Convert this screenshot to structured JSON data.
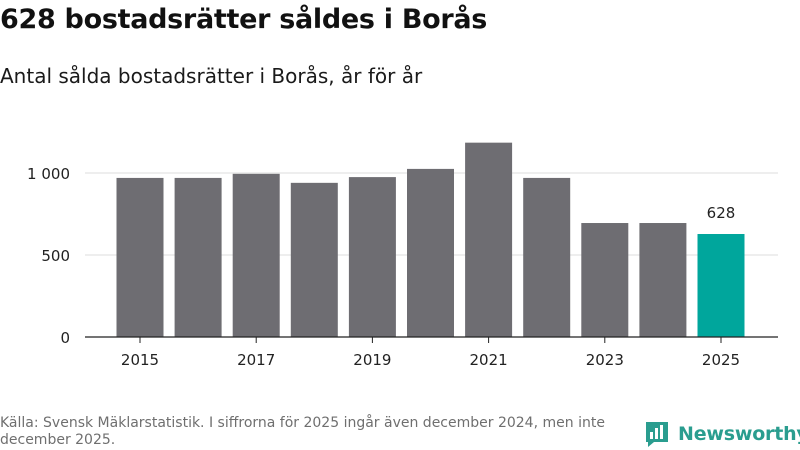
{
  "header": {
    "title": "628 bostadsrätter såldes i Borås",
    "subtitle": "Antal sålda bostadsrätter i Borås, år för år"
  },
  "footer": {
    "source": "Källa: Svensk Mäklarstatistik. I siffrorna för 2025 ingår även december 2024, men inte december 2025."
  },
  "brand": {
    "name": "Newsworthy",
    "icon": "bar-chart-logo-icon"
  },
  "colors": {
    "bar": "#6e6d72",
    "highlight": "#00a69c",
    "grid": "#dddddd",
    "axis": "#222222",
    "brand": "#2a9d8f"
  },
  "chart_data": {
    "type": "bar",
    "categories": [
      "2015",
      "2016",
      "2017",
      "2018",
      "2019",
      "2020",
      "2021",
      "2022",
      "2023",
      "2024",
      "2025"
    ],
    "values": [
      970,
      970,
      995,
      940,
      975,
      1025,
      1185,
      970,
      695,
      695,
      628
    ],
    "highlight_index": 10,
    "value_labels": {
      "10": "628"
    },
    "xtick_labels": [
      "2015",
      "2017",
      "2019",
      "2021",
      "2023",
      "2025"
    ],
    "yticks": [
      0,
      500,
      1000
    ],
    "ytick_labels": [
      "0",
      "500",
      "1 000"
    ],
    "ylim": [
      0,
      1250
    ],
    "xlabel": "",
    "ylabel": "",
    "grid": true
  }
}
